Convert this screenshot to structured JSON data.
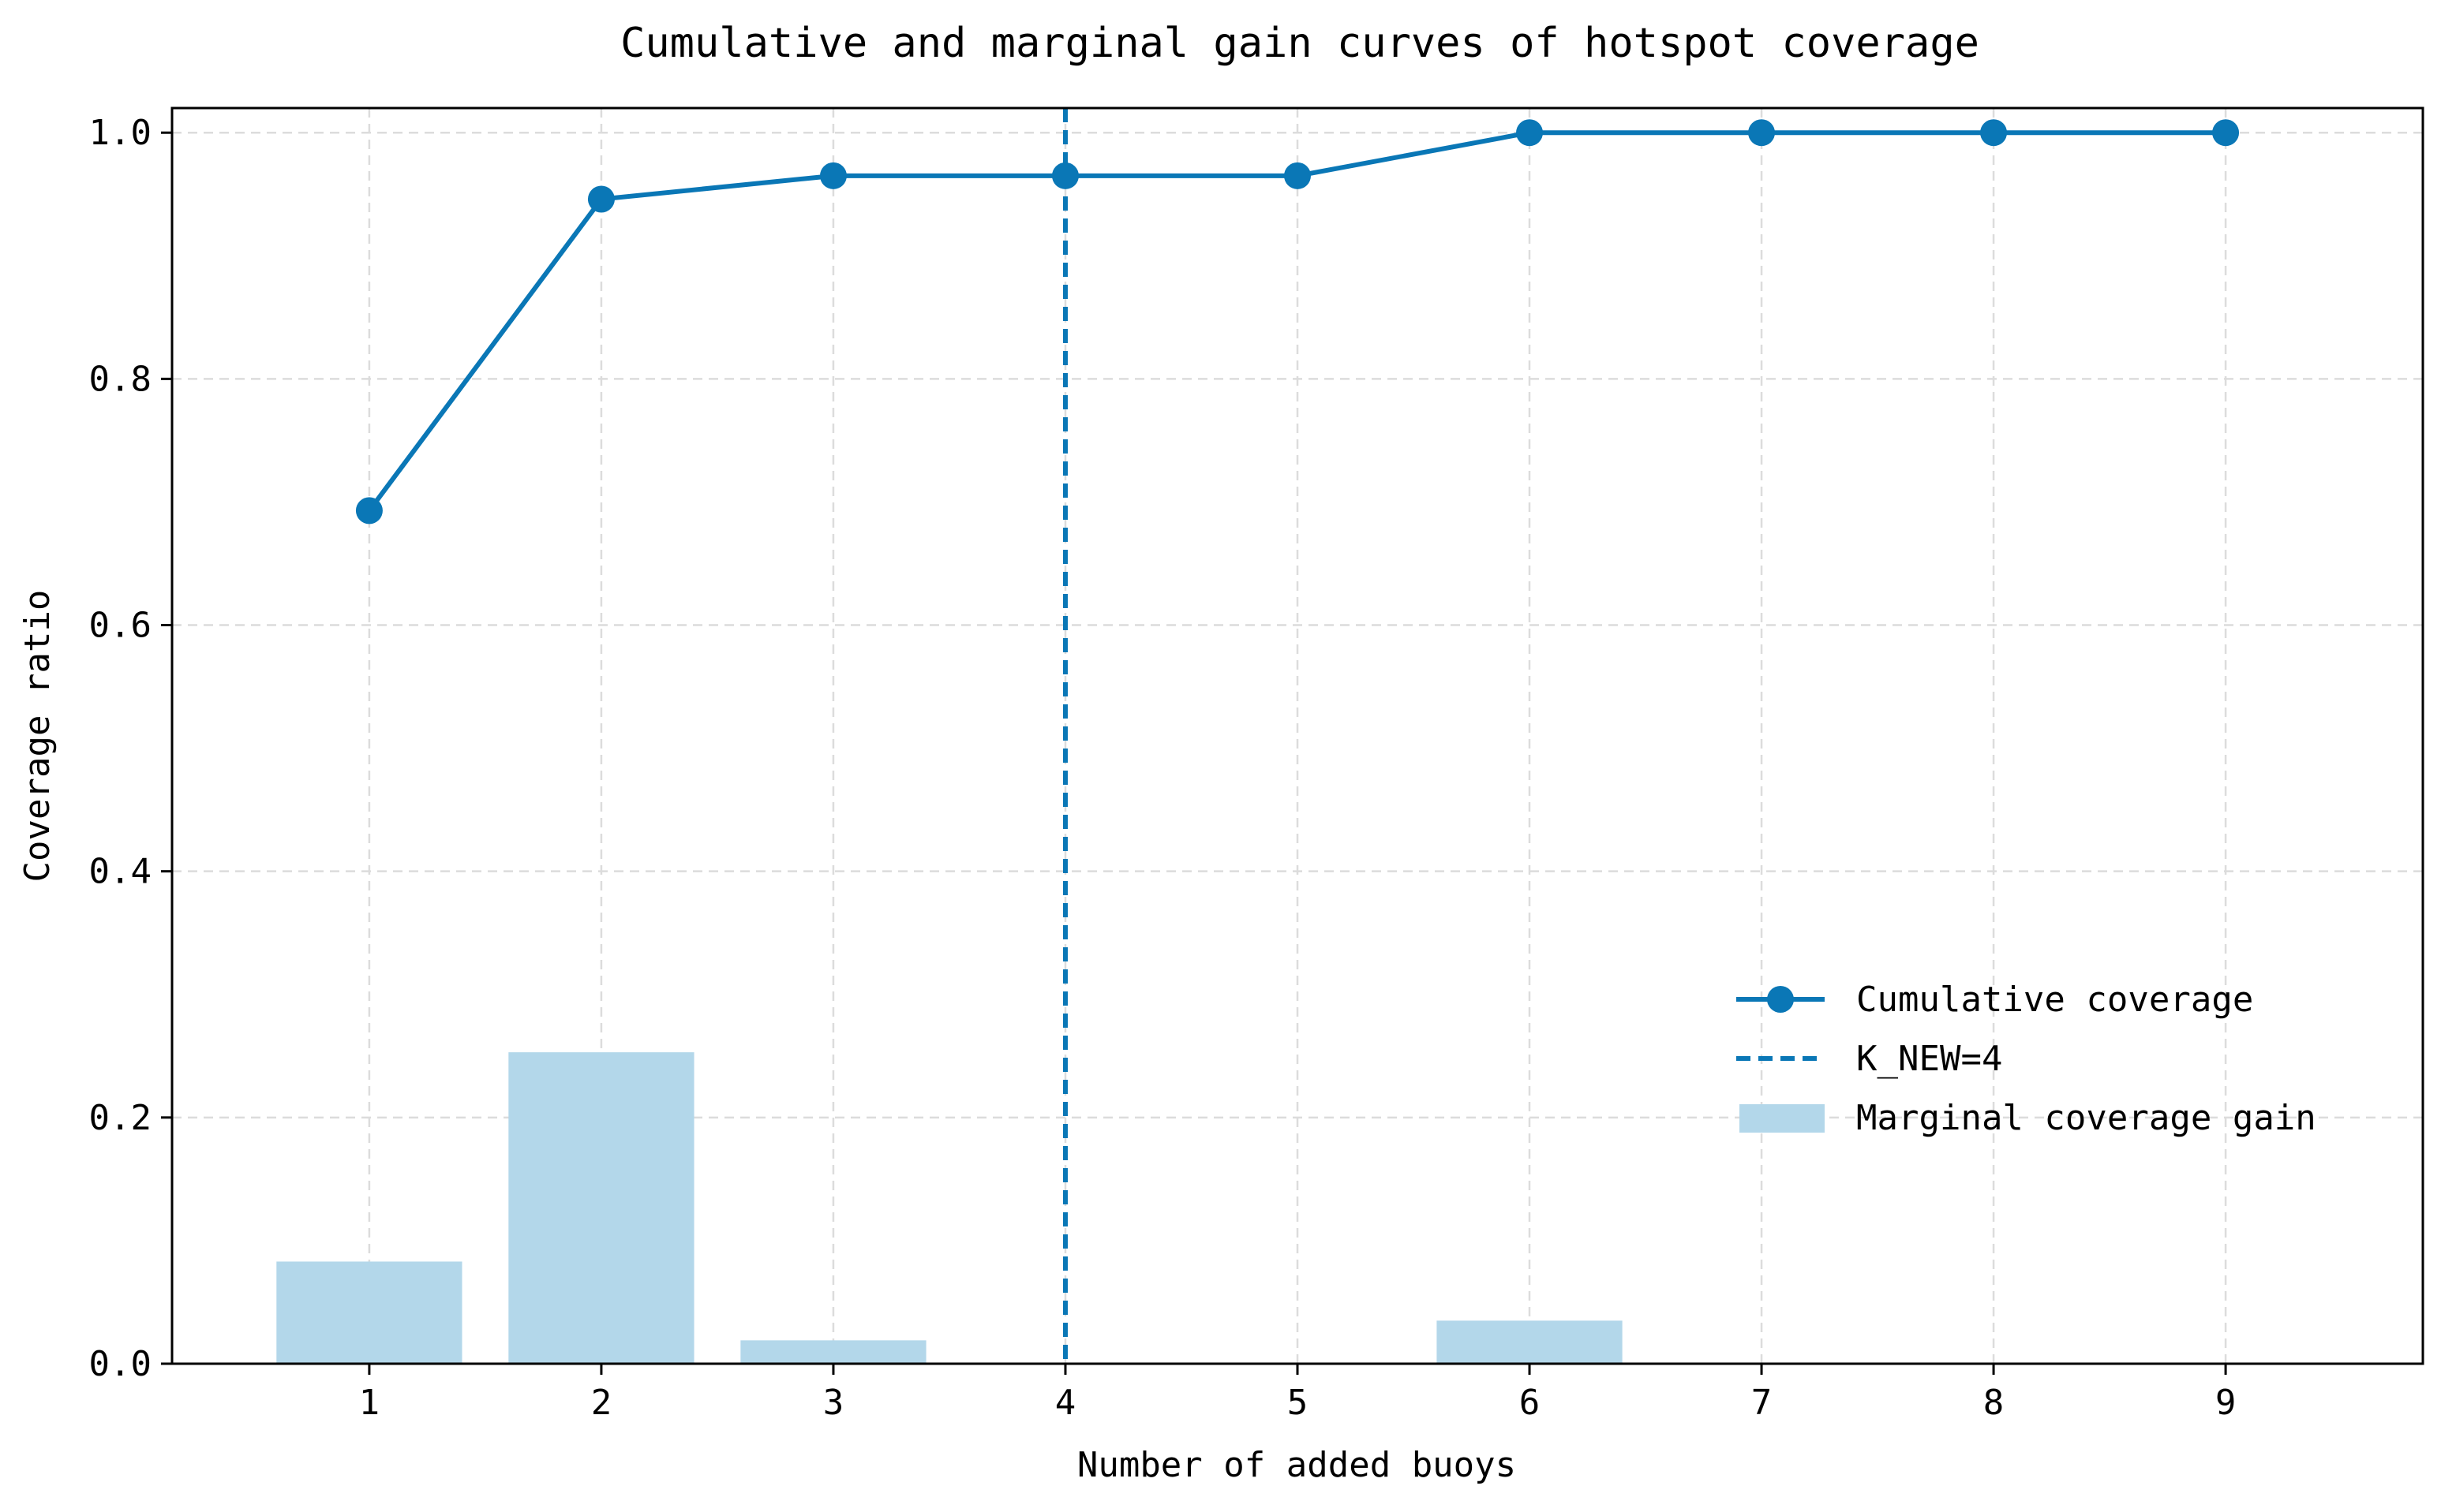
{
  "chart_data": {
    "type": "bar",
    "title": "Cumulative and marginal gain curves of hotspot coverage",
    "xlabel": "Number of added buoys",
    "ylabel": "Coverage ratio",
    "x": [
      1,
      2,
      3,
      4,
      5,
      6,
      7,
      8,
      9
    ],
    "xlim": [
      0.15,
      9.85
    ],
    "ylim": [
      -0.0,
      1.02
    ],
    "yticks": [
      0.0,
      0.2,
      0.4,
      0.6,
      0.8,
      1.0
    ],
    "ytick_labels": [
      "0.0",
      "0.2",
      "0.4",
      "0.6",
      "0.8",
      "1.0"
    ],
    "grid": true,
    "legend_position": "center-right",
    "series": [
      {
        "name": "Cumulative coverage",
        "kind": "line",
        "marker": "circle",
        "color": "#0a77b6",
        "values": [
          0.693,
          0.946,
          0.965,
          0.965,
          0.965,
          1.0,
          1.0,
          1.0,
          1.0
        ]
      },
      {
        "name": "Marginal coverage gain",
        "kind": "bar",
        "color": "#b3d7ea",
        "values": [
          0.083,
          0.253,
          0.019,
          0.0,
          0.0,
          0.035,
          0.0,
          0.0,
          0.0
        ]
      }
    ],
    "reference_lines": [
      {
        "name": "K_NEW=4",
        "orientation": "vertical",
        "x": 4,
        "style": "dashed",
        "color": "#0a77b6"
      }
    ]
  }
}
